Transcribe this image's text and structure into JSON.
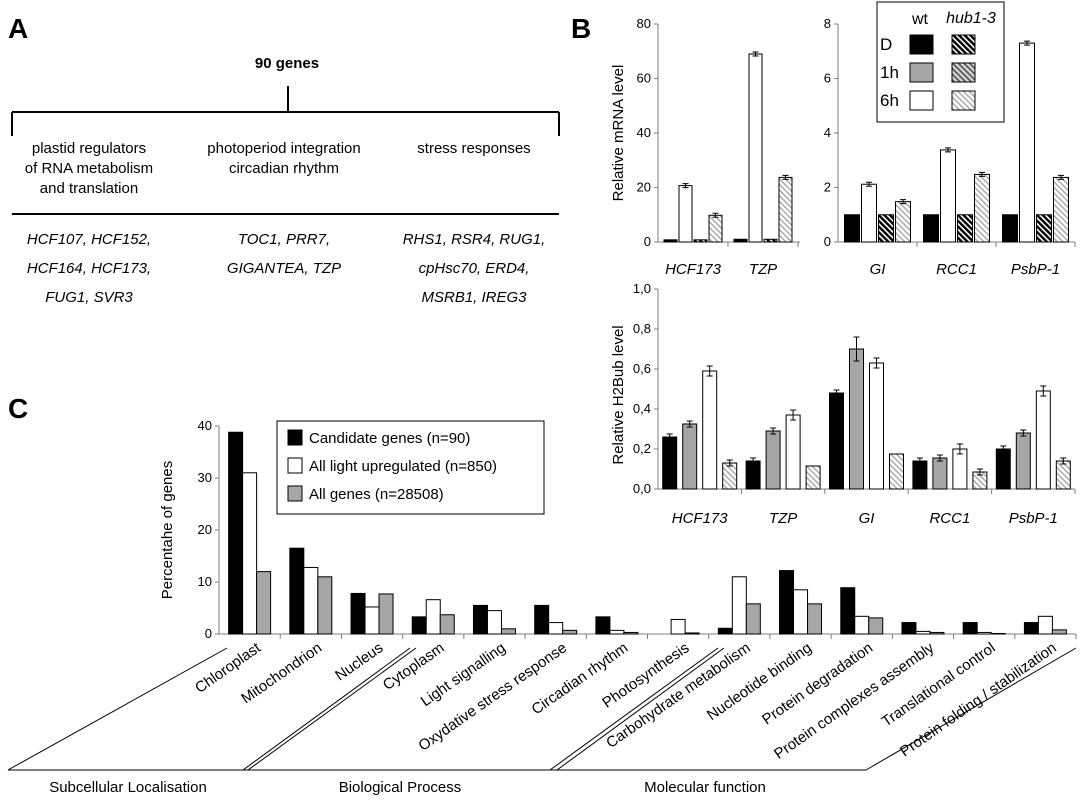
{
  "panel_a": {
    "letter": "A",
    "root": "90 genes",
    "groups": [
      {
        "title": [
          "plastid regulators",
          "of RNA metabolism",
          "and translation"
        ],
        "genes": [
          "HCF107, HCF152,",
          "HCF164, HCF173,",
          "FUG1, SVR3"
        ]
      },
      {
        "title": [
          "photoperiod integration",
          "circadian rhythm"
        ],
        "genes": [
          "TOC1, PRR7,",
          "GIGANTEA, TZP"
        ]
      },
      {
        "title": [
          "stress responses"
        ],
        "genes": [
          "RHS1, RSR4, RUG1,",
          "cpHsc70, ERD4,",
          "MSRB1, IREG3"
        ]
      }
    ]
  },
  "panel_b_letter": "B",
  "panel_c_letter": "C",
  "colors": {
    "black": "#000000",
    "gray": "#a6a6a6",
    "white": "#ffffff",
    "axis": "#7f7f7f"
  },
  "legend_b": {
    "header_wt": "wt",
    "header_mut": "hub1-3",
    "rows": [
      "D",
      "1h",
      "6h"
    ]
  },
  "chart_data": [
    {
      "id": "mrna",
      "type": "bar",
      "ylabel": "Relative mRNA level",
      "subplots": [
        {
          "categories": [
            "HCF173",
            "TZP"
          ],
          "ylim": [
            0,
            80
          ],
          "yticks": [
            "0",
            "20",
            "40",
            "60",
            "80"
          ],
          "series": [
            {
              "name": "D wt",
              "values": [
                0.8,
                1.0
              ]
            },
            {
              "name": "6h wt",
              "values": [
                20.7,
                69.0
              ]
            },
            {
              "name": "D hub1-3",
              "values": [
                0.8,
                1.0
              ]
            },
            {
              "name": "6h hub1-3",
              "values": [
                9.8,
                23.7
              ]
            }
          ]
        },
        {
          "categories": [
            "GI",
            "RCC1",
            "PsbP-1"
          ],
          "ylim": [
            0,
            8
          ],
          "yticks": [
            "0",
            "2",
            "4",
            "6",
            "8"
          ],
          "series": [
            {
              "name": "D wt",
              "values": [
                1.0,
                1.0,
                1.0
              ]
            },
            {
              "name": "6h wt",
              "values": [
                2.12,
                3.38,
                7.3
              ]
            },
            {
              "name": "D hub1-3",
              "values": [
                1.0,
                1.0,
                1.0
              ]
            },
            {
              "name": "6h hub1-3",
              "values": [
                1.48,
                2.48,
                2.37
              ]
            }
          ]
        }
      ]
    },
    {
      "id": "h2bub",
      "type": "bar",
      "ylabel": "Relative H2Bub level",
      "ylim": [
        0,
        1.0
      ],
      "yticks": [
        "0,0",
        "0,2",
        "0,4",
        "0,6",
        "0,8",
        "1,0"
      ],
      "categories": [
        "HCF173",
        "TZP",
        "GI",
        "RCC1",
        "PsbP-1"
      ],
      "series": [
        {
          "name": "D wt",
          "values": [
            0.26,
            0.14,
            0.48,
            0.14,
            0.2
          ]
        },
        {
          "name": "1h wt",
          "values": [
            0.325,
            0.29,
            0.7,
            0.155,
            0.28
          ]
        },
        {
          "name": "6h wt",
          "values": [
            0.59,
            0.37,
            0.63,
            0.2,
            0.49
          ]
        },
        {
          "name": "6h hub1-3",
          "values": [
            0.13,
            0.115,
            0.175,
            0.085,
            0.14
          ]
        }
      ]
    },
    {
      "id": "go",
      "type": "bar",
      "ylabel": "Percentahe of genes",
      "ylim": [
        0,
        40
      ],
      "yticks": [
        "0",
        "10",
        "20",
        "30",
        "40"
      ],
      "categories": [
        "Chloroplast",
        "Mitochondrion",
        "Nucleus",
        "Cytoplasm",
        "Light signalling",
        "Oxydative stress response",
        "Circadian rhythm",
        "Photosynthesis",
        "Carbohydrate metabolism",
        "Nucleotide binding",
        "Protein degradation",
        "Protein complexes assembly",
        "Translational control",
        "Protein folding / stabilization"
      ],
      "groups": [
        "Subcellular Localisation",
        "Biological Process",
        "Molecular function"
      ],
      "series": [
        {
          "name": "Candidate genes (n=90)",
          "values": [
            38.8,
            16.5,
            7.8,
            3.3,
            5.5,
            5.5,
            3.3,
            0,
            1.1,
            12.2,
            8.9,
            2.2,
            2.2,
            2.2
          ]
        },
        {
          "name": "All light upregulated (n=850)",
          "values": [
            31.0,
            12.8,
            5.2,
            6.6,
            4.5,
            2.2,
            0.7,
            2.8,
            11.0,
            8.5,
            3.4,
            0.5,
            0.3,
            3.4
          ]
        },
        {
          "name": "All genes (n=28508)",
          "values": [
            12.0,
            11.0,
            7.7,
            3.7,
            1.0,
            0.7,
            0.3,
            0.2,
            5.8,
            5.8,
            3.1,
            0.3,
            0.1,
            0.8
          ]
        }
      ]
    }
  ]
}
